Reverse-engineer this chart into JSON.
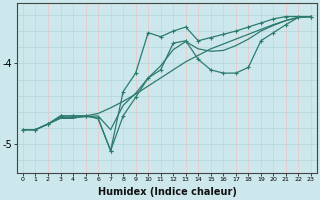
{
  "xlabel": "Humidex (Indice chaleur)",
  "background_color": "#cde8ec",
  "line_color": "#2d7a6e",
  "xlim": [
    -0.5,
    23.5
  ],
  "ylim": [
    -5.35,
    -3.25
  ],
  "yticks": [
    -5,
    -4
  ],
  "xticks": [
    0,
    1,
    2,
    3,
    4,
    5,
    6,
    7,
    8,
    9,
    10,
    11,
    12,
    13,
    14,
    15,
    16,
    17,
    18,
    19,
    20,
    21,
    22,
    23
  ],
  "vgrid_color": "#e8c8c8",
  "hgrid_color": "#b8d8dc",
  "series1_x": [
    0,
    1,
    2,
    3,
    4,
    5,
    6,
    7,
    8,
    9,
    10,
    11,
    12,
    13,
    14,
    15,
    16,
    17,
    18,
    19,
    20,
    21,
    22,
    23
  ],
  "series1_y": [
    -4.82,
    -4.82,
    -4.75,
    -4.68,
    -4.68,
    -4.65,
    -4.62,
    -4.55,
    -4.47,
    -4.38,
    -4.28,
    -4.18,
    -4.08,
    -3.98,
    -3.9,
    -3.82,
    -3.76,
    -3.7,
    -3.64,
    -3.58,
    -3.52,
    -3.47,
    -3.43,
    -3.42
  ],
  "series2_x": [
    0,
    1,
    2,
    3,
    4,
    5,
    6,
    7,
    8,
    9,
    10,
    11,
    12,
    13,
    14,
    15,
    16,
    17,
    18,
    19,
    20,
    21,
    22,
    23
  ],
  "series2_y": [
    -4.82,
    -4.82,
    -4.75,
    -4.65,
    -4.65,
    -4.65,
    -4.68,
    -5.08,
    -4.65,
    -4.42,
    -4.18,
    -4.08,
    -3.75,
    -3.72,
    -3.95,
    -4.08,
    -4.12,
    -4.12,
    -4.05,
    -3.72,
    -3.62,
    -3.52,
    -3.43,
    -3.42
  ],
  "series3_x": [
    0,
    1,
    2,
    3,
    4,
    5,
    6,
    7,
    8,
    9,
    10,
    11,
    12,
    13,
    14,
    15,
    16,
    17,
    18,
    19,
    20,
    21,
    22,
    23
  ],
  "series3_y": [
    -4.82,
    -4.82,
    -4.75,
    -4.65,
    -4.65,
    -4.65,
    -4.68,
    -5.08,
    -4.35,
    -4.12,
    -3.62,
    -3.67,
    -3.6,
    -3.55,
    -3.72,
    -3.68,
    -3.64,
    -3.6,
    -3.55,
    -3.5,
    -3.45,
    -3.42,
    -3.42,
    -3.42
  ],
  "series4_x": [
    0,
    1,
    2,
    3,
    4,
    5,
    6,
    7,
    8,
    9,
    10,
    11,
    12,
    13,
    14,
    15,
    16,
    17,
    18,
    19,
    20,
    21,
    22,
    23
  ],
  "series4_y": [
    -4.82,
    -4.82,
    -4.75,
    -4.67,
    -4.67,
    -4.66,
    -4.65,
    -4.82,
    -4.52,
    -4.37,
    -4.18,
    -4.03,
    -3.83,
    -3.73,
    -3.82,
    -3.85,
    -3.84,
    -3.78,
    -3.7,
    -3.6,
    -3.53,
    -3.47,
    -3.43,
    -3.42
  ],
  "marker_series": [
    1,
    2
  ],
  "figwidth": 3.2,
  "figheight": 2.0,
  "dpi": 100
}
